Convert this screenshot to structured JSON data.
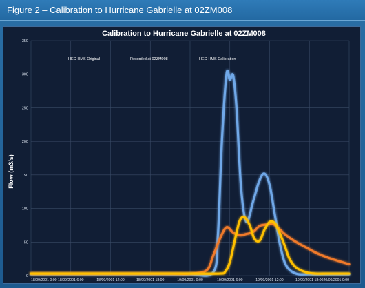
{
  "figure": {
    "caption": "Figure 2 – Calibration to Hurricane Gabrielle at 02ZM008"
  },
  "chart_data": {
    "type": "line",
    "title": "Calibration to Hurricane Gabrielle at 02ZM008",
    "ylabel": "Flow (m3/s)",
    "xlabel": "",
    "ylim": [
      0,
      350
    ],
    "yticks": [
      0,
      50,
      100,
      150,
      200,
      250,
      300,
      350
    ],
    "xlim_hours": [
      0,
      48
    ],
    "xticks": [
      {
        "t": 0,
        "label": "18/09/2001 0:00"
      },
      {
        "t": 6,
        "label": "18/09/2001 6:00"
      },
      {
        "t": 12,
        "label": "18/09/2001 12:00"
      },
      {
        "t": 18,
        "label": "18/09/2001 18:00"
      },
      {
        "t": 24,
        "label": "19/09/2001 0:00"
      },
      {
        "t": 30,
        "label": "19/09/2001 6:00"
      },
      {
        "t": 36,
        "label": "19/09/2001 12:00"
      },
      {
        "t": 42,
        "label": "19/09/2001 18:00"
      },
      {
        "t": 48,
        "label": "20/09/2001 0:00"
      }
    ],
    "grid": true,
    "legend_position": "top-left",
    "series": [
      {
        "name": "HEC-HMS Original",
        "color": "#6fa8e8",
        "x": [
          0,
          20,
          24,
          27.5,
          28.2,
          28.8,
          29.5,
          30.0,
          30.5,
          31.0,
          31.7,
          32.5,
          33.5,
          34.4,
          35.2,
          36.0,
          36.8,
          37.6,
          38.5,
          40,
          42,
          44,
          48
        ],
        "y": [
          2,
          2,
          2,
          5,
          60,
          200,
          300,
          292,
          298,
          250,
          130,
          80,
          110,
          140,
          152,
          135,
          90,
          45,
          15,
          3,
          2,
          2,
          2
        ]
      },
      {
        "name": "Recorded at 02ZM008",
        "color": "#f07a2a",
        "x": [
          0,
          20,
          24,
          26.5,
          27.5,
          28.5,
          29.5,
          30.5,
          31.5,
          32.5,
          33.5,
          34.5,
          35.5,
          36.5,
          37.5,
          38.5,
          40,
          41.5,
          43,
          45,
          48
        ],
        "y": [
          3,
          3,
          3,
          8,
          30,
          55,
          72,
          64,
          60,
          62,
          65,
          74,
          76,
          77,
          69,
          60,
          50,
          42,
          34,
          26,
          17
        ]
      },
      {
        "name": "HEC-HMS Calibration",
        "color": "#ffc000",
        "x": [
          0,
          20,
          24,
          28.5,
          29.3,
          30.0,
          30.8,
          31.5,
          32.2,
          33.0,
          33.7,
          34.5,
          35.2,
          36.0,
          36.8,
          37.5,
          38.3,
          39.0,
          40,
          41.5,
          43,
          44.5,
          46,
          48
        ],
        "y": [
          3,
          3,
          3,
          3,
          6,
          20,
          55,
          82,
          87,
          75,
          55,
          52,
          68,
          80,
          78,
          64,
          44,
          25,
          12,
          5,
          3,
          3,
          3,
          3
        ]
      }
    ]
  }
}
